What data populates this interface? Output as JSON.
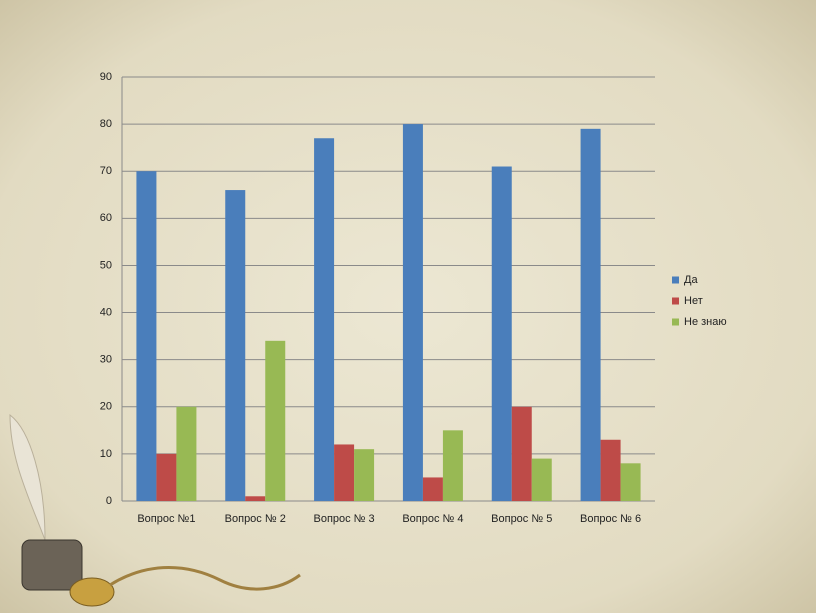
{
  "chart_data": {
    "type": "bar",
    "categories": [
      "Вопрос №1",
      "Вопрос № 2",
      "Вопрос № 3",
      "Вопрос № 4",
      "Вопрос № 5",
      "Вопрос № 6"
    ],
    "series": [
      {
        "name": "Да",
        "color": "#4a7ebb",
        "values": [
          70,
          66,
          77,
          80,
          71,
          79
        ]
      },
      {
        "name": "Нет",
        "color": "#be4b48",
        "values": [
          10,
          1,
          12,
          5,
          20,
          13
        ]
      },
      {
        "name": "Не знаю",
        "color": "#98b954",
        "values": [
          20,
          34,
          11,
          15,
          9,
          8
        ]
      }
    ],
    "ylim": [
      0,
      90
    ],
    "yticks": [
      0,
      10,
      20,
      30,
      40,
      50,
      60,
      70,
      80,
      90
    ],
    "grid": true,
    "legend": "right"
  }
}
